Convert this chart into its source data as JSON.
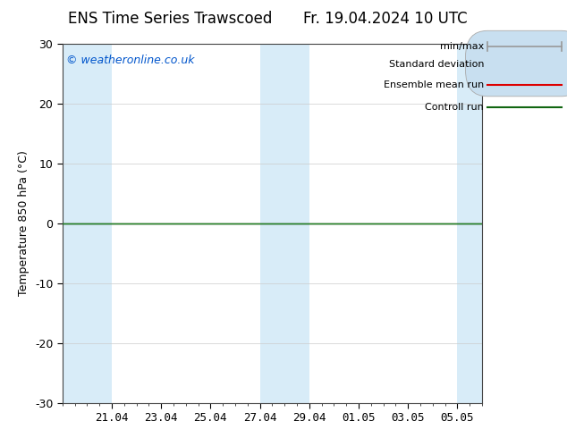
{
  "title_left": "ENS Time Series Trawscoed",
  "title_right": "Fr. 19.04.2024 10 UTC",
  "ylabel": "Temperature 850 hPa (°C)",
  "watermark": "© weatheronline.co.uk",
  "watermark_color": "#0055cc",
  "ylim": [
    -30,
    30
  ],
  "yticks": [
    -30,
    -20,
    -10,
    0,
    10,
    20,
    30
  ],
  "background_color": "#ffffff",
  "plot_bg_color": "#ffffff",
  "band_color": "#d8ecf8",
  "zero_line_color": "#111111",
  "green_line_color": "#228822",
  "legend_labels": [
    "min/max",
    "Standard deviation",
    "Ensemble mean run",
    "Controll run"
  ],
  "minmax_color": "#999999",
  "std_fill_color": "#c8dff0",
  "std_edge_color": "#aaaaaa",
  "mean_run_color": "#dd0000",
  "ctrl_run_color": "#116611",
  "tick_labels": [
    "21.04",
    "23.04",
    "25.04",
    "27.04",
    "29.04",
    "01.05",
    "03.05",
    "05.05"
  ],
  "tick_positions": [
    2,
    4,
    6,
    8,
    10,
    12,
    14,
    16
  ],
  "blue_band_ranges": [
    [
      0,
      2
    ],
    [
      8,
      10
    ],
    [
      16,
      17
    ]
  ],
  "total_days": 17,
  "title_fontsize": 12,
  "label_fontsize": 9,
  "tick_fontsize": 9,
  "legend_fontsize": 8,
  "watermark_fontsize": 9
}
